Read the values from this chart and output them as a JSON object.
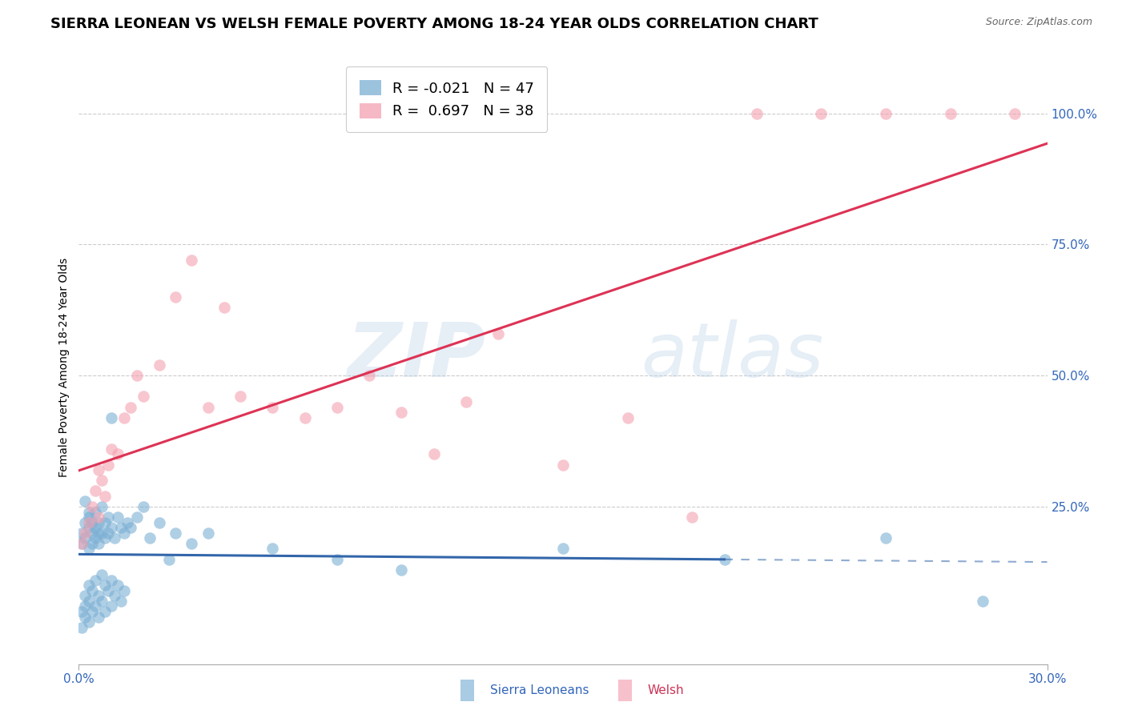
{
  "title": "SIERRA LEONEAN VS WELSH FEMALE POVERTY AMONG 18-24 YEAR OLDS CORRELATION CHART",
  "source": "Source: ZipAtlas.com",
  "ylabel": "Female Poverty Among 18-24 Year Olds",
  "xlim": [
    0.0,
    0.3
  ],
  "ylim": [
    -0.05,
    1.08
  ],
  "xticks": [
    0.0,
    0.3
  ],
  "xticklabels": [
    "0.0%",
    "30.0%"
  ],
  "yticks_right": [
    0.25,
    0.5,
    0.75,
    1.0
  ],
  "yticklabels_right": [
    "25.0%",
    "50.0%",
    "75.0%",
    "100.0%"
  ],
  "background_color": "#ffffff",
  "grid_color": "#cccccc",
  "sierra_color": "#7bafd4",
  "welsh_color": "#f4a0b0",
  "sierra_line_color": "#3366aa",
  "welsh_line_color": "#dd3355",
  "sierra_R": -0.021,
  "sierra_N": 47,
  "welsh_R": 0.697,
  "welsh_N": 38,
  "sierra_x": [
    0.001,
    0.001,
    0.002,
    0.002,
    0.002,
    0.003,
    0.003,
    0.003,
    0.003,
    0.004,
    0.004,
    0.004,
    0.005,
    0.005,
    0.005,
    0.006,
    0.006,
    0.006,
    0.007,
    0.007,
    0.008,
    0.008,
    0.009,
    0.009,
    0.01,
    0.01,
    0.011,
    0.012,
    0.013,
    0.014,
    0.015,
    0.016,
    0.018,
    0.02,
    0.022,
    0.025,
    0.028,
    0.03,
    0.035,
    0.04,
    0.06,
    0.08,
    0.1,
    0.15,
    0.2,
    0.25,
    0.28
  ],
  "sierra_y": [
    0.2,
    0.18,
    0.26,
    0.22,
    0.19,
    0.24,
    0.21,
    0.17,
    0.23,
    0.2,
    0.18,
    0.22,
    0.19,
    0.21,
    0.24,
    0.2,
    0.18,
    0.22,
    0.2,
    0.25,
    0.19,
    0.22,
    0.2,
    0.23,
    0.42,
    0.21,
    0.19,
    0.23,
    0.21,
    0.2,
    0.22,
    0.21,
    0.23,
    0.25,
    0.19,
    0.22,
    0.15,
    0.2,
    0.18,
    0.2,
    0.17,
    0.15,
    0.13,
    0.17,
    0.15,
    0.19,
    0.07
  ],
  "sierra_low_x": [
    0.001,
    0.001,
    0.002,
    0.002,
    0.002,
    0.003,
    0.003,
    0.003,
    0.004,
    0.004,
    0.005,
    0.005,
    0.006,
    0.006,
    0.007,
    0.007,
    0.008,
    0.008,
    0.009,
    0.01,
    0.01,
    0.011,
    0.012,
    0.013,
    0.014
  ],
  "sierra_low_y": [
    0.05,
    0.02,
    0.08,
    0.04,
    0.06,
    0.1,
    0.07,
    0.03,
    0.09,
    0.05,
    0.11,
    0.06,
    0.08,
    0.04,
    0.12,
    0.07,
    0.1,
    0.05,
    0.09,
    0.11,
    0.06,
    0.08,
    0.1,
    0.07,
    0.09
  ],
  "welsh_x": [
    0.001,
    0.002,
    0.003,
    0.004,
    0.005,
    0.006,
    0.006,
    0.007,
    0.008,
    0.009,
    0.01,
    0.012,
    0.014,
    0.016,
    0.018,
    0.02,
    0.025,
    0.03,
    0.035,
    0.04,
    0.045,
    0.05,
    0.06,
    0.07,
    0.08,
    0.09,
    0.1,
    0.11,
    0.12,
    0.13,
    0.15,
    0.17,
    0.19,
    0.21,
    0.23,
    0.25,
    0.27,
    0.29
  ],
  "welsh_y": [
    0.18,
    0.2,
    0.22,
    0.25,
    0.28,
    0.23,
    0.32,
    0.3,
    0.27,
    0.33,
    0.36,
    0.35,
    0.42,
    0.44,
    0.5,
    0.46,
    0.52,
    0.65,
    0.72,
    0.44,
    0.63,
    0.46,
    0.44,
    0.42,
    0.44,
    0.5,
    0.43,
    0.35,
    0.45,
    0.58,
    0.33,
    0.42,
    0.23,
    1.0,
    1.0,
    1.0,
    1.0,
    1.0
  ],
  "watermark_zip": "ZIP",
  "watermark_atlas": "atlas",
  "title_fontsize": 13,
  "axis_label_fontsize": 10,
  "tick_fontsize": 11,
  "legend_fontsize": 13
}
